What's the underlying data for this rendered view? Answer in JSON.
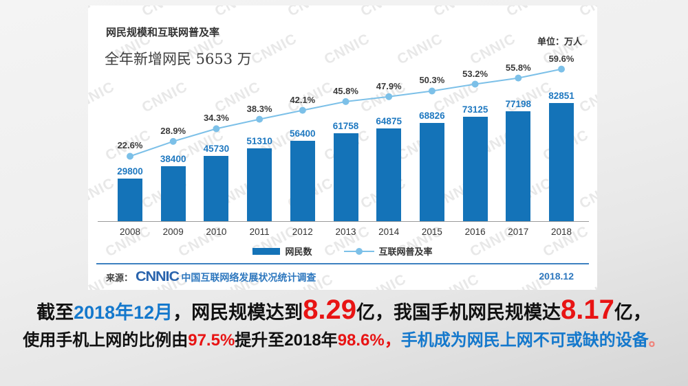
{
  "chart": {
    "title": "网民规模和互联网普及率",
    "subtitle": "全年新增网民 5653 万",
    "unit_label": "单位：万人",
    "legend_bar_label": "网民数",
    "legend_line_label": "互联网普及率",
    "source_prefix": "来源：",
    "source_logo": "CNNIC",
    "source_text": "中国互联网络发展状况统计调查",
    "date_label": "2018.12",
    "watermark_text": "CNNIC",
    "colors": {
      "bar": "#1473b8",
      "line": "#7cc0e8",
      "value_label": "#1e78c0",
      "pct_label": "#3a3a3a",
      "divider": "#3c80c0",
      "caption_blue": "#1478cc",
      "caption_red": "#e81414"
    }
  },
  "chart_data": {
    "type": "bar",
    "categories": [
      "2008",
      "2009",
      "2010",
      "2011",
      "2012",
      "2013",
      "2014",
      "2015",
      "2016",
      "2017",
      "2018"
    ],
    "series": [
      {
        "name": "网民数",
        "type": "bar",
        "unit": "万人",
        "values": [
          29800,
          38400,
          45730,
          51310,
          56400,
          61758,
          64875,
          68826,
          73125,
          77198,
          82851
        ]
      },
      {
        "name": "互联网普及率",
        "type": "line",
        "unit": "%",
        "values": [
          22.6,
          28.9,
          34.3,
          38.3,
          42.1,
          45.8,
          47.9,
          50.3,
          53.2,
          55.8,
          59.6
        ]
      }
    ],
    "title": "网民规模和互联网普及率",
    "xlabel": "",
    "ylabel": "万人",
    "ylim": [
      0,
      85000
    ],
    "y2lim": [
      0,
      70
    ],
    "grid": false,
    "legend_position": "bottom"
  },
  "caption": {
    "line1": [
      {
        "text": "截至",
        "style": "black"
      },
      {
        "text": "2018年12月",
        "style": "blue"
      },
      {
        "text": "，网民规模达到",
        "style": "black"
      },
      {
        "text": "8.29",
        "style": "red-big"
      },
      {
        "text": "亿，我国手机网民规模达",
        "style": "black"
      },
      {
        "text": "8.17",
        "style": "red-big"
      },
      {
        "text": "亿，",
        "style": "black"
      }
    ],
    "line2": [
      {
        "text": "使用手机上网的比例由",
        "style": "black"
      },
      {
        "text": "97.5%",
        "style": "red"
      },
      {
        "text": "提升至2018年",
        "style": "black"
      },
      {
        "text": "98.6%，",
        "style": "red"
      },
      {
        "text": "手机成为网民上网不可或缺的设备",
        "style": "blue"
      },
      {
        "text": "。",
        "style": "period"
      }
    ]
  }
}
